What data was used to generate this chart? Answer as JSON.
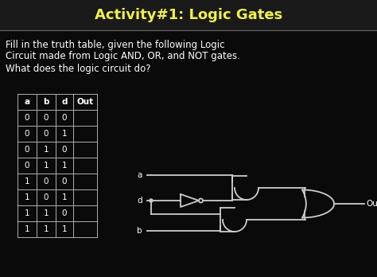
{
  "title": "Activity#1: Logic Gates",
  "title_color": "#f0f04a",
  "bg_color": "#0a0a0a",
  "text_color": "#ffffff",
  "line1": "Fill in the truth table, given the following Logic",
  "line2": "Circuit made from Logic AND, OR, and NOT gates.",
  "line3": "What does the logic circuit do?",
  "table_headers": [
    "a",
    "b",
    "d",
    "Out"
  ],
  "table_rows": [
    [
      "0",
      "0",
      "0",
      ""
    ],
    [
      "0",
      "0",
      "1",
      ""
    ],
    [
      "0",
      "1",
      "0",
      ""
    ],
    [
      "0",
      "1",
      "1",
      ""
    ],
    [
      "1",
      "0",
      "0",
      ""
    ],
    [
      "1",
      "0",
      "1",
      ""
    ],
    [
      "1",
      "1",
      "0",
      ""
    ],
    [
      "1",
      "1",
      "1",
      ""
    ]
  ],
  "wire_color": "#cccccc",
  "title_bar_color": "#1a1a1a",
  "separator_color": "#666666"
}
